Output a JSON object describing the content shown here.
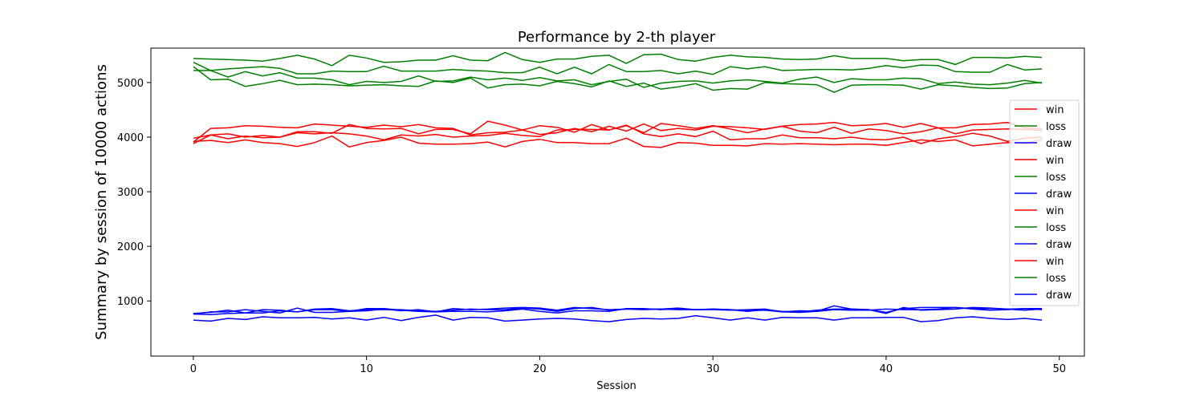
{
  "chart_data": {
    "type": "line",
    "title": "Performance by 2-th player",
    "xlabel": "Session",
    "ylabel": "Summary by session of 10000 actions",
    "xlim": [
      -2.45,
      51.45
    ],
    "ylim": [
      -10,
      5630
    ],
    "xticks": [
      0,
      10,
      20,
      30,
      40,
      50
    ],
    "yticks": [
      1000,
      2000,
      3000,
      4000,
      5000
    ],
    "grid": false,
    "legend_position": "right",
    "colors": {
      "win": "#ff0000",
      "loss": "#008000",
      "draw": "#0000ff"
    },
    "x": [
      0,
      1,
      2,
      3,
      4,
      5,
      6,
      7,
      8,
      9,
      10,
      11,
      12,
      13,
      14,
      15,
      16,
      17,
      18,
      19,
      20,
      21,
      22,
      23,
      24,
      25,
      26,
      27,
      28,
      29,
      30,
      31,
      32,
      33,
      34,
      35,
      36,
      37,
      38,
      39,
      40,
      41,
      42,
      43,
      44,
      45,
      46,
      47,
      48,
      49
    ],
    "series": [
      {
        "name": "win",
        "color": "#ff0000",
        "values": [
          3880,
          4040,
          3970,
          4020,
          3990,
          4000,
          4080,
          4060,
          4080,
          4060,
          4020,
          3950,
          4040,
          4020,
          4050,
          4000,
          4020,
          4030,
          4070,
          4030,
          4010,
          4130,
          4140,
          4140,
          4130,
          4220,
          4060,
          4010,
          4060,
          4010,
          4110,
          3950,
          3970,
          3970,
          4040,
          3990,
          3990,
          3970,
          4000,
          3960,
          3950,
          4000,
          3880,
          3970,
          4010,
          4070,
          4020,
          3920,
          3980,
          4000
        ]
      },
      {
        "name": "loss",
        "color": "#008000",
        "values": [
          5370,
          5220,
          5100,
          5200,
          5120,
          5180,
          5080,
          5080,
          5050,
          4960,
          5020,
          5000,
          5020,
          5120,
          5020,
          5030,
          5100,
          5050,
          5080,
          5040,
          5090,
          5030,
          5050,
          4960,
          5020,
          5060,
          4910,
          4990,
          5020,
          5030,
          4990,
          5030,
          5050,
          5020,
          4990,
          5060,
          5100,
          5000,
          5070,
          5050,
          5050,
          5080,
          5070,
          4980,
          5010,
          4970,
          4960,
          4990,
          5040,
          4990
        ]
      },
      {
        "name": "draw",
        "color": "#0000ff",
        "values": [
          760,
          750,
          770,
          780,
          780,
          820,
          800,
          850,
          860,
          820,
          840,
          840,
          840,
          820,
          810,
          830,
          850,
          840,
          840,
          870,
          850,
          810,
          860,
          880,
          830,
          850,
          840,
          850,
          840,
          840,
          850,
          840,
          820,
          830,
          800,
          790,
          810,
          840,
          830,
          830,
          850,
          840,
          840,
          850,
          880,
          860,
          860,
          850,
          860,
          860
        ]
      },
      {
        "name": "win",
        "color": "#ff0000",
        "values": [
          3920,
          3940,
          3900,
          3950,
          3900,
          3880,
          3830,
          3900,
          4020,
          3820,
          3900,
          3940,
          4000,
          3890,
          3870,
          3870,
          3880,
          3910,
          3820,
          3920,
          3960,
          3900,
          3900,
          3880,
          3880,
          3980,
          3830,
          3810,
          3900,
          3890,
          3850,
          3850,
          3840,
          3880,
          3870,
          3880,
          3870,
          3860,
          3870,
          3870,
          3850,
          3900,
          3950,
          3920,
          3950,
          3840,
          3870,
          3900,
          3880,
          3960
        ]
      },
      {
        "name": "loss",
        "color": "#008000",
        "values": [
          5290,
          5050,
          5060,
          4930,
          4980,
          5040,
          4960,
          4970,
          4960,
          4940,
          4950,
          4960,
          4940,
          4930,
          5030,
          5000,
          5080,
          4900,
          4960,
          4970,
          4940,
          5020,
          4980,
          4920,
          5030,
          4930,
          4990,
          4880,
          4920,
          4980,
          4860,
          4890,
          4880,
          5000,
          4980,
          4970,
          4960,
          4820,
          4950,
          4960,
          4960,
          4950,
          4880,
          4960,
          4940,
          4910,
          4890,
          4900,
          4980,
          5000
        ]
      },
      {
        "name": "draw",
        "color": "#0000ff",
        "values": [
          760,
          800,
          800,
          840,
          810,
          780,
          870,
          790,
          790,
          810,
          820,
          850,
          820,
          840,
          800,
          810,
          810,
          800,
          820,
          850,
          810,
          780,
          820,
          820,
          810,
          860,
          860,
          840,
          860,
          840,
          840,
          830,
          840,
          850,
          800,
          820,
          810,
          910,
          850,
          840,
          770,
          880,
          830,
          840,
          850,
          880,
          870,
          850,
          830,
          850
        ]
      },
      {
        "name": "win",
        "color": "#ff0000",
        "values": [
          3980,
          4040,
          4060,
          4000,
          4030,
          4000,
          4100,
          4100,
          4070,
          4230,
          4160,
          4150,
          4160,
          4060,
          4140,
          4140,
          4060,
          4290,
          4220,
          4130,
          4210,
          4180,
          4090,
          4230,
          4130,
          4210,
          4080,
          4250,
          4210,
          4160,
          4210,
          4150,
          4080,
          4150,
          4200,
          4110,
          4080,
          4180,
          4070,
          4150,
          4120,
          4060,
          4100,
          4170,
          4060,
          4130,
          4140,
          4150,
          4140,
          4120
        ]
      },
      {
        "name": "loss",
        "color": "#008000",
        "values": [
          5220,
          5220,
          5250,
          5270,
          5290,
          5260,
          5160,
          5160,
          5210,
          5200,
          5200,
          5300,
          5210,
          5210,
          5210,
          5240,
          5220,
          5210,
          5180,
          5180,
          5280,
          5160,
          5280,
          5160,
          5330,
          5200,
          5200,
          5220,
          5160,
          5210,
          5150,
          5290,
          5250,
          5290,
          5220,
          5230,
          5240,
          5240,
          5230,
          5260,
          5310,
          5270,
          5320,
          5310,
          5200,
          5190,
          5190,
          5330,
          5230,
          5250
        ]
      },
      {
        "name": "draw",
        "color": "#0000ff",
        "values": [
          650,
          630,
          680,
          660,
          710,
          690,
          690,
          700,
          670,
          690,
          650,
          700,
          640,
          700,
          740,
          650,
          700,
          690,
          630,
          650,
          670,
          680,
          670,
          640,
          620,
          660,
          680,
          670,
          680,
          730,
          690,
          650,
          690,
          650,
          700,
          690,
          690,
          650,
          690,
          690,
          700,
          700,
          620,
          640,
          690,
          710,
          680,
          660,
          680,
          650
        ]
      },
      {
        "name": "win",
        "color": "#ff0000",
        "values": [
          3910,
          4160,
          4170,
          4210,
          4200,
          4180,
          4170,
          4240,
          4220,
          4200,
          4180,
          4220,
          4190,
          4230,
          4170,
          4160,
          4040,
          4080,
          4090,
          4130,
          4050,
          4080,
          4160,
          4100,
          4200,
          4110,
          4240,
          4120,
          4160,
          4130,
          4200,
          4190,
          4170,
          4140,
          4200,
          4230,
          4240,
          4270,
          4210,
          4220,
          4250,
          4180,
          4250,
          4170,
          4170,
          4230,
          4240,
          4270,
          4170,
          4150
        ]
      },
      {
        "name": "loss",
        "color": "#008000",
        "values": [
          5440,
          5430,
          5420,
          5410,
          5390,
          5440,
          5500,
          5430,
          5310,
          5500,
          5450,
          5370,
          5380,
          5410,
          5410,
          5490,
          5410,
          5400,
          5550,
          5420,
          5370,
          5430,
          5430,
          5480,
          5500,
          5350,
          5510,
          5520,
          5420,
          5390,
          5460,
          5500,
          5470,
          5460,
          5430,
          5420,
          5430,
          5490,
          5440,
          5440,
          5440,
          5400,
          5420,
          5420,
          5330,
          5460,
          5460,
          5450,
          5480,
          5460
        ]
      },
      {
        "name": "draw",
        "color": "#0000ff",
        "values": [
          770,
          790,
          830,
          780,
          840,
          830,
          800,
          840,
          840,
          810,
          860,
          860,
          830,
          810,
          800,
          860,
          840,
          850,
          870,
          880,
          870,
          830,
          880,
          860,
          840,
          850,
          850,
          850,
          870,
          840,
          850,
          840,
          810,
          840,
          810,
          800,
          830,
          850,
          850,
          840,
          790,
          860,
          880,
          880,
          880,
          850,
          830,
          840,
          860,
          840
        ]
      }
    ]
  }
}
